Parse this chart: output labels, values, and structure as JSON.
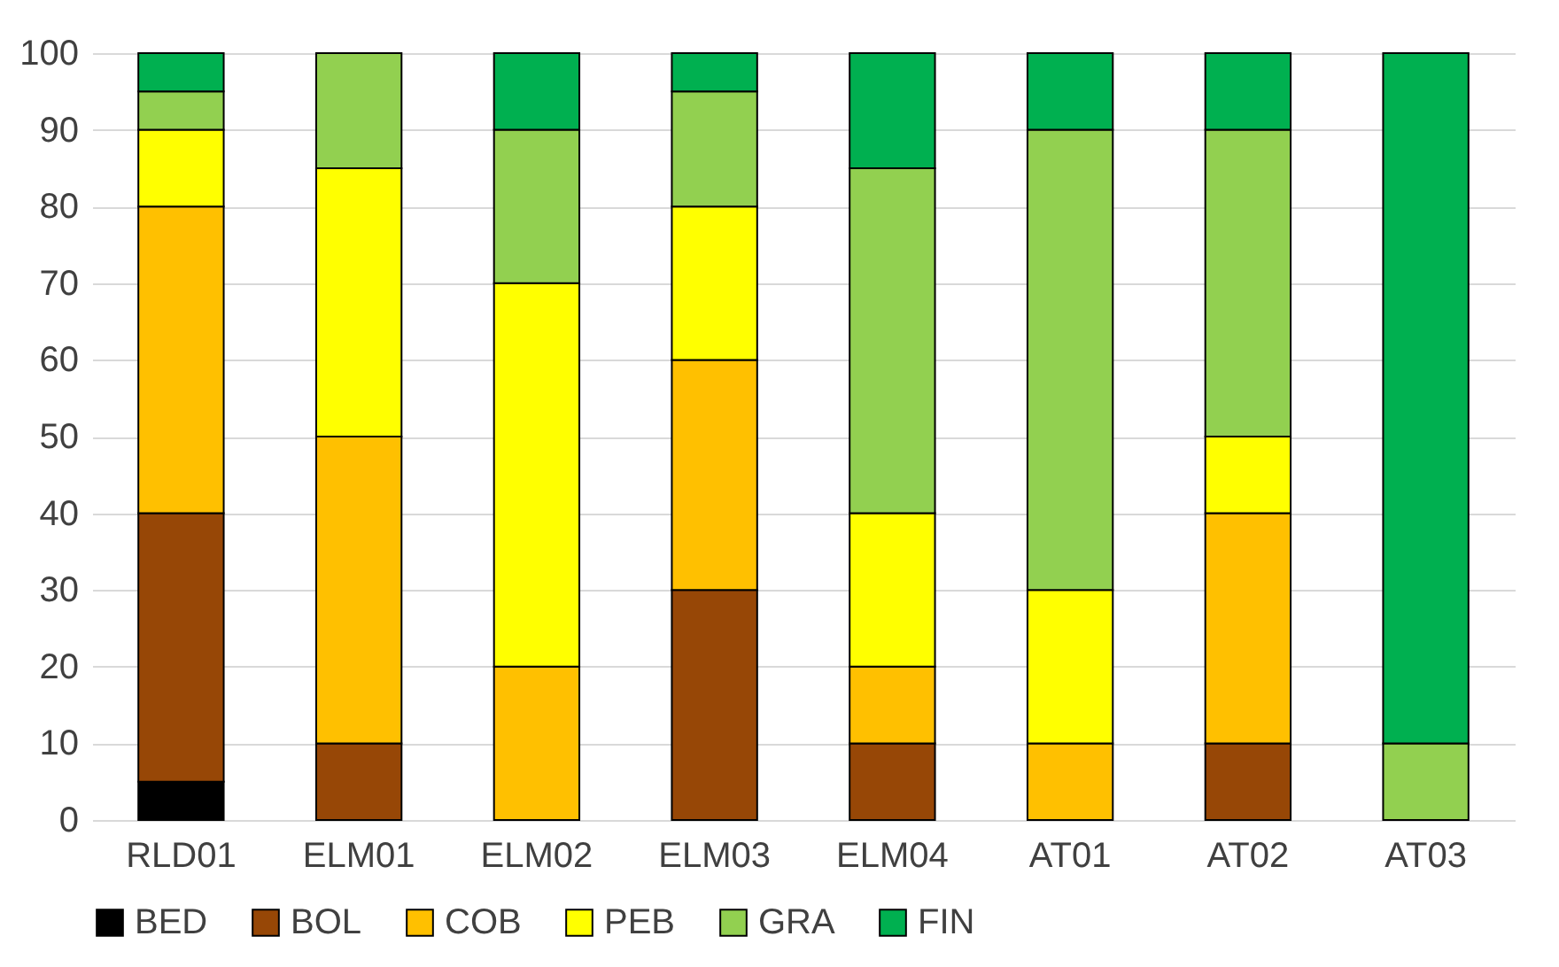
{
  "chart_data": {
    "type": "bar",
    "stacked": true,
    "categories": [
      "RLD01",
      "ELM01",
      "ELM02",
      "ELM03",
      "ELM04",
      "AT01",
      "AT02",
      "AT03"
    ],
    "series": [
      {
        "name": "BED",
        "color": "#000000",
        "values": [
          5,
          null,
          null,
          null,
          null,
          null,
          null,
          null
        ]
      },
      {
        "name": "BOL",
        "color": "#974706",
        "values": [
          35,
          10,
          null,
          30,
          10,
          null,
          10,
          null
        ]
      },
      {
        "name": "COB",
        "color": "#ffc000",
        "values": [
          40,
          40,
          20,
          30,
          10,
          10,
          30,
          null
        ]
      },
      {
        "name": "PEB",
        "color": "#ffff00",
        "values": [
          10,
          35,
          50,
          20,
          20,
          20,
          10,
          null
        ]
      },
      {
        "name": "GRA",
        "color": "#92d050",
        "values": [
          5,
          15,
          20,
          15,
          45,
          60,
          40,
          10
        ]
      },
      {
        "name": "FIN",
        "color": "#00b050",
        "values": [
          5,
          null,
          10,
          5,
          15,
          10,
          10,
          90
        ]
      }
    ],
    "ylim": [
      0,
      100
    ],
    "yticks": [
      0,
      10,
      20,
      30,
      40,
      50,
      60,
      70,
      80,
      90,
      100
    ],
    "grid": "y",
    "legend": "bottom"
  }
}
